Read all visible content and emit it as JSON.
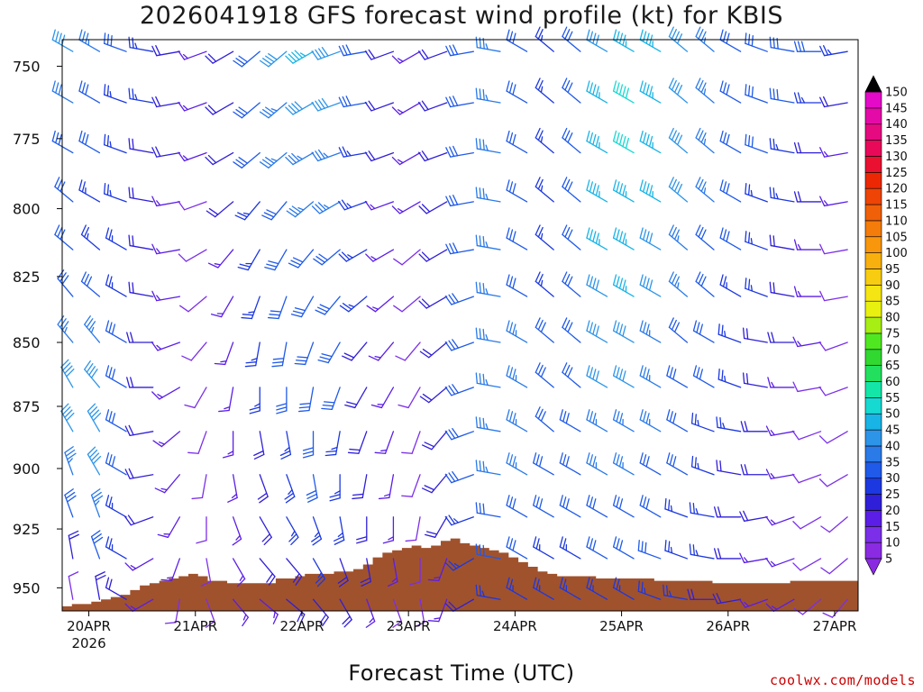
{
  "title": "2026041918 GFS forecast wind profile (kt) for KBIS",
  "xlabel": "Forecast Time (UTC)",
  "credit": "coolwx.com/models",
  "chart_data": {
    "type": "wind-barb-profile",
    "station": "KBIS",
    "units": "kt",
    "y_ticks": [
      750,
      775,
      800,
      825,
      850,
      875,
      900,
      925,
      950
    ],
    "ylim": [
      960,
      741
    ],
    "x_ticks": [
      {
        "label": "20APR",
        "sub": "2026",
        "day": 0
      },
      {
        "label": "21APR",
        "sub": "",
        "day": 1
      },
      {
        "label": "22APR",
        "sub": "",
        "day": 2
      },
      {
        "label": "23APR",
        "sub": "",
        "day": 3
      },
      {
        "label": "24APR",
        "sub": "",
        "day": 4
      },
      {
        "label": "25APR",
        "sub": "",
        "day": 5
      },
      {
        "label": "26APR",
        "sub": "",
        "day": 6
      },
      {
        "label": "27APR",
        "sub": "",
        "day": 7
      }
    ],
    "xlim_days": [
      -0.25,
      7.22
    ],
    "colorbar": {
      "levels": [
        5,
        10,
        15,
        20,
        25,
        30,
        35,
        40,
        45,
        50,
        55,
        60,
        65,
        70,
        75,
        80,
        85,
        90,
        95,
        100,
        105,
        110,
        115,
        120,
        125,
        130,
        135,
        140,
        145,
        150
      ],
      "colors": [
        "#8a2be2",
        "#7b2fe8",
        "#5a1ee6",
        "#2f1fd8",
        "#1c38e0",
        "#1f5ae8",
        "#2a7ae8",
        "#2d95e8",
        "#18b4e6",
        "#16d9d2",
        "#14e6a8",
        "#22e05e",
        "#30d830",
        "#4fe820",
        "#a6ee14",
        "#e8f010",
        "#f5e512",
        "#f8cc10",
        "#f8b00e",
        "#f8960c",
        "#f47c0a",
        "#f06008",
        "#ee4406",
        "#ec2804",
        "#ea1030",
        "#e80a58",
        "#e60a80",
        "#e40aa8",
        "#e40ac8",
        "#e40ae8"
      ]
    },
    "terrain_pressure": [
      958,
      957,
      957,
      956,
      955,
      954,
      953,
      951,
      949,
      948,
      947,
      946,
      945,
      944,
      945,
      947,
      947,
      948,
      948,
      948,
      948,
      948,
      946,
      946,
      945,
      944,
      944,
      944,
      943,
      943,
      942,
      940,
      937,
      935,
      934,
      933,
      932,
      933,
      932,
      930,
      929,
      931,
      932,
      933,
      934,
      935,
      937,
      939,
      941,
      943,
      944,
      945,
      945,
      945,
      945,
      946,
      946,
      946,
      946,
      946,
      946,
      947,
      947,
      947,
      947,
      947,
      947,
      948,
      948,
      948,
      948,
      948,
      948,
      948,
      948,
      947,
      947,
      947,
      947,
      947,
      947,
      947
    ],
    "wind_speed_kt": [
      [
        40,
        35,
        30,
        25,
        20,
        15,
        20,
        30,
        40,
        45,
        40,
        30,
        20,
        15,
        20,
        30,
        35,
        30,
        25,
        30,
        40,
        45,
        45,
        40,
        35,
        30,
        30,
        30,
        30,
        25
      ],
      [
        35,
        30,
        25,
        25,
        20,
        15,
        20,
        30,
        35,
        40,
        40,
        30,
        20,
        15,
        20,
        30,
        35,
        30,
        25,
        30,
        45,
        50,
        45,
        40,
        35,
        30,
        30,
        30,
        25,
        20
      ],
      [
        30,
        30,
        25,
        20,
        20,
        15,
        20,
        30,
        35,
        35,
        35,
        25,
        20,
        15,
        20,
        30,
        35,
        30,
        25,
        30,
        45,
        50,
        45,
        40,
        35,
        30,
        30,
        25,
        20,
        15
      ],
      [
        30,
        25,
        25,
        20,
        15,
        10,
        20,
        25,
        30,
        35,
        35,
        25,
        15,
        15,
        20,
        30,
        35,
        30,
        25,
        30,
        45,
        45,
        45,
        40,
        35,
        30,
        25,
        25,
        20,
        15
      ],
      [
        30,
        25,
        25,
        20,
        15,
        10,
        15,
        25,
        30,
        30,
        30,
        25,
        15,
        10,
        20,
        30,
        35,
        30,
        25,
        30,
        45,
        45,
        40,
        35,
        30,
        30,
        25,
        20,
        15,
        10
      ],
      [
        30,
        30,
        25,
        20,
        15,
        10,
        15,
        25,
        30,
        30,
        30,
        25,
        15,
        10,
        20,
        30,
        35,
        30,
        25,
        30,
        40,
        45,
        40,
        35,
        30,
        25,
        25,
        20,
        15,
        10
      ],
      [
        35,
        35,
        30,
        20,
        15,
        10,
        15,
        25,
        30,
        30,
        30,
        20,
        15,
        10,
        20,
        30,
        35,
        35,
        30,
        30,
        40,
        40,
        35,
        30,
        30,
        25,
        20,
        20,
        15,
        10
      ],
      [
        40,
        40,
        30,
        20,
        15,
        10,
        15,
        25,
        30,
        30,
        30,
        20,
        15,
        10,
        20,
        30,
        35,
        35,
        30,
        30,
        40,
        40,
        35,
        30,
        30,
        25,
        20,
        15,
        10,
        10
      ],
      [
        40,
        40,
        30,
        20,
        15,
        10,
        15,
        20,
        25,
        30,
        25,
        20,
        15,
        10,
        20,
        30,
        35,
        35,
        30,
        30,
        35,
        35,
        35,
        30,
        25,
        25,
        20,
        15,
        10,
        10
      ],
      [
        35,
        40,
        30,
        20,
        15,
        10,
        15,
        20,
        25,
        30,
        25,
        20,
        15,
        10,
        20,
        30,
        35,
        35,
        30,
        30,
        35,
        35,
        30,
        30,
        25,
        20,
        20,
        15,
        10,
        10
      ],
      [
        30,
        35,
        25,
        20,
        15,
        10,
        15,
        20,
        25,
        25,
        25,
        20,
        15,
        10,
        20,
        25,
        30,
        30,
        30,
        30,
        30,
        30,
        30,
        25,
        25,
        20,
        20,
        15,
        10,
        10
      ],
      [
        20,
        30,
        25,
        15,
        15,
        10,
        15,
        20,
        20,
        25,
        20,
        20,
        15,
        10,
        15,
        25,
        30,
        30,
        25,
        25,
        30,
        30,
        30,
        25,
        25,
        20,
        15,
        15,
        10,
        10
      ],
      [
        10,
        20,
        20,
        15,
        10,
        10,
        15,
        15,
        20,
        20,
        20,
        15,
        10,
        10,
        15,
        20,
        25,
        25,
        25,
        25,
        25,
        25,
        25,
        25,
        20,
        20,
        15,
        15,
        10,
        10
      ]
    ],
    "wind_dir_deg": [
      [
        300,
        300,
        290,
        280,
        260,
        250,
        240,
        230,
        230,
        240,
        250,
        260,
        250,
        240,
        250,
        260,
        280,
        300,
        310,
        310,
        300,
        300,
        300,
        310,
        310,
        300,
        290,
        280,
        270,
        260
      ],
      [
        300,
        300,
        290,
        280,
        260,
        250,
        240,
        230,
        230,
        240,
        250,
        260,
        250,
        240,
        250,
        260,
        280,
        300,
        310,
        310,
        300,
        300,
        300,
        310,
        310,
        300,
        290,
        280,
        270,
        260
      ],
      [
        300,
        300,
        290,
        280,
        260,
        250,
        240,
        230,
        230,
        240,
        250,
        260,
        250,
        240,
        250,
        260,
        280,
        300,
        310,
        310,
        300,
        300,
        300,
        310,
        310,
        300,
        290,
        280,
        270,
        260
      ],
      [
        310,
        300,
        290,
        280,
        260,
        250,
        230,
        220,
        220,
        230,
        240,
        250,
        250,
        240,
        240,
        260,
        280,
        300,
        310,
        310,
        300,
        300,
        300,
        310,
        310,
        300,
        290,
        280,
        270,
        260
      ],
      [
        310,
        310,
        300,
        280,
        260,
        240,
        220,
        210,
        210,
        220,
        230,
        240,
        240,
        230,
        240,
        260,
        280,
        300,
        310,
        310,
        300,
        300,
        300,
        310,
        310,
        300,
        290,
        280,
        270,
        260
      ],
      [
        320,
        310,
        300,
        280,
        260,
        230,
        210,
        200,
        200,
        210,
        220,
        230,
        230,
        230,
        240,
        250,
        280,
        300,
        310,
        310,
        300,
        300,
        300,
        310,
        310,
        300,
        290,
        280,
        270,
        260
      ],
      [
        320,
        320,
        300,
        270,
        250,
        220,
        200,
        190,
        190,
        200,
        210,
        220,
        220,
        220,
        230,
        250,
        280,
        300,
        310,
        310,
        300,
        300,
        300,
        310,
        300,
        290,
        280,
        270,
        260,
        250
      ],
      [
        330,
        320,
        300,
        270,
        240,
        210,
        190,
        180,
        180,
        190,
        200,
        210,
        210,
        210,
        230,
        250,
        280,
        300,
        310,
        310,
        300,
        300,
        300,
        300,
        300,
        290,
        280,
        270,
        260,
        250
      ],
      [
        330,
        330,
        300,
        260,
        230,
        200,
        180,
        170,
        170,
        180,
        190,
        200,
        200,
        200,
        220,
        250,
        280,
        300,
        310,
        300,
        300,
        300,
        300,
        300,
        290,
        280,
        270,
        260,
        250,
        240
      ],
      [
        340,
        330,
        300,
        260,
        220,
        190,
        170,
        160,
        160,
        170,
        180,
        190,
        190,
        200,
        220,
        250,
        280,
        300,
        300,
        300,
        300,
        300,
        300,
        300,
        290,
        280,
        270,
        260,
        250,
        240
      ],
      [
        340,
        340,
        300,
        250,
        210,
        180,
        160,
        150,
        150,
        160,
        170,
        180,
        180,
        190,
        210,
        250,
        280,
        300,
        300,
        300,
        300,
        300,
        300,
        290,
        280,
        270,
        260,
        250,
        240,
        230
      ],
      [
        350,
        340,
        300,
        240,
        200,
        170,
        150,
        140,
        140,
        150,
        160,
        170,
        170,
        180,
        200,
        240,
        280,
        300,
        300,
        300,
        300,
        300,
        290,
        290,
        280,
        270,
        260,
        250,
        240,
        230
      ],
      [
        350,
        350,
        300,
        240,
        190,
        160,
        140,
        130,
        130,
        140,
        150,
        160,
        160,
        170,
        200,
        240,
        280,
        300,
        300,
        300,
        300,
        300,
        290,
        280,
        270,
        260,
        250,
        240,
        230,
        220
      ]
    ]
  }
}
